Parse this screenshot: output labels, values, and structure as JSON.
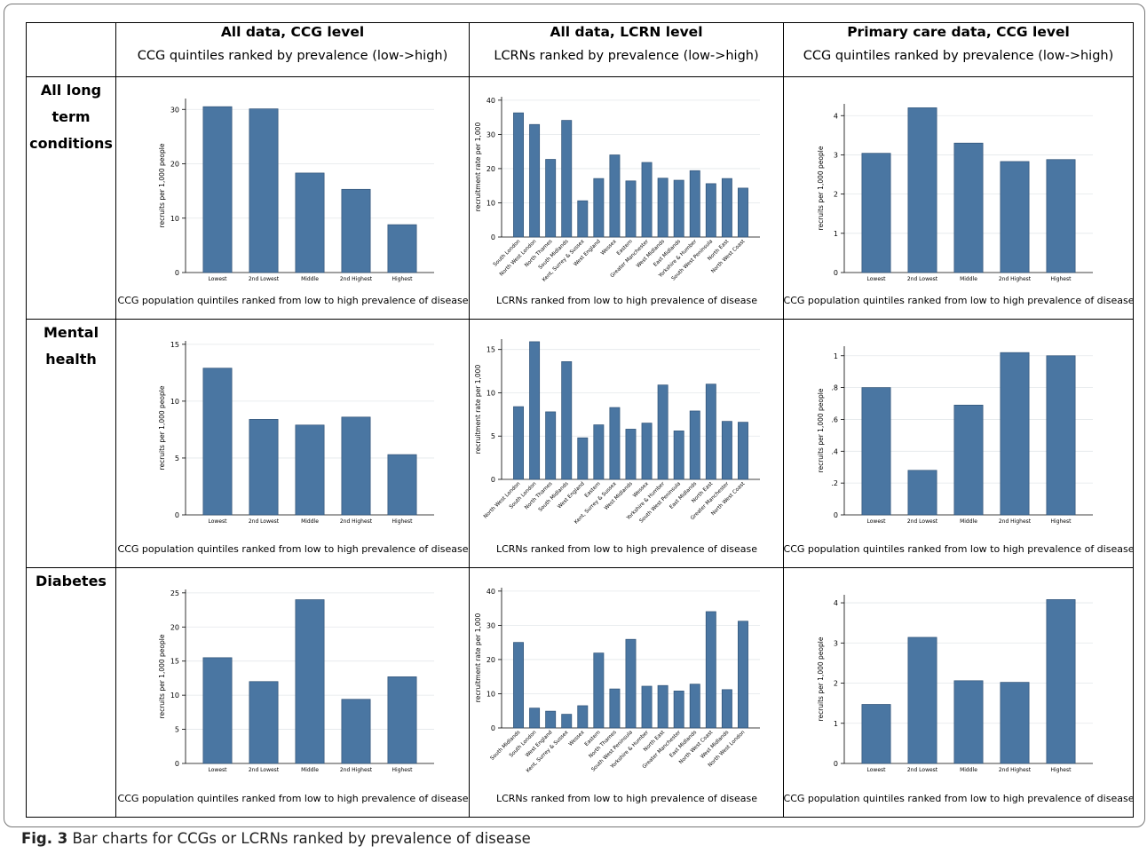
{
  "columns": [
    {
      "title": "All data, CCG level",
      "subtitle": "CCG quintiles ranked by prevalence (low->high)"
    },
    {
      "title": "All data, LCRN level",
      "subtitle": "LCRNs ranked by prevalence (low->high)"
    },
    {
      "title": "Primary care data, CCG level",
      "subtitle": "CCG quintiles ranked by prevalence (low->high)"
    }
  ],
  "rows": [
    {
      "label_lines": [
        "All long",
        "term",
        "conditions"
      ]
    },
    {
      "label_lines": [
        "Mental",
        "health"
      ]
    },
    {
      "label_lines": [
        "Diabetes"
      ]
    }
  ],
  "caption": {
    "fig": "Fig. 3",
    "text": " Bar charts for CCGs or LCRNs ranked by prevalence of disease"
  },
  "colors": {
    "bar": "#4a76a2",
    "bar_edge": "#2f5277",
    "grid": "#e3e7ea"
  },
  "chart_data": [
    {
      "type": "bar",
      "row": 0,
      "col": 0,
      "categories": [
        "Lowest",
        "2nd Lowest",
        "Middle",
        "2nd Highest",
        "Highest"
      ],
      "values": [
        30.5,
        30.1,
        18.3,
        15.3,
        8.8
      ],
      "ylabel": "recruits per 1,000 people",
      "ylim": [
        0,
        32
      ],
      "yticks": [
        0,
        10,
        20,
        30
      ],
      "ytick_labels": [
        "0",
        "10",
        "20",
        "30"
      ],
      "xlabel": "CCG population quintiles ranked from low to high prevalence of disease",
      "rotate_x": false
    },
    {
      "type": "bar",
      "row": 0,
      "col": 1,
      "categories": [
        "South London",
        "North West London",
        "North Thames",
        "South Midlands",
        "Kent, Surrey & Sussex",
        "West England",
        "Wessex",
        "Eastern",
        "Greater Manchester",
        "West Midlands",
        "East Midlands",
        "Yorkshire & Humber",
        "South West Peninsula",
        "North East",
        "North West Coast"
      ],
      "values": [
        36.3,
        32.9,
        22.7,
        34.1,
        10.6,
        17.1,
        24.0,
        16.4,
        21.8,
        17.2,
        16.6,
        19.4,
        15.6,
        17.1,
        14.3
      ],
      "ylabel": "recruitment rate per 1,000",
      "ylim": [
        0,
        41
      ],
      "yticks": [
        0,
        10,
        20,
        30,
        40
      ],
      "ytick_labels": [
        "0",
        "10",
        "20",
        "30",
        "40"
      ],
      "xlabel": "LCRNs ranked from low to high prevalence of disease",
      "rotate_x": true
    },
    {
      "type": "bar",
      "row": 0,
      "col": 2,
      "categories": [
        "Lowest",
        "2nd Lowest",
        "Middle",
        "2nd Highest",
        "Highest"
      ],
      "values": [
        3.04,
        4.2,
        3.3,
        2.83,
        2.88
      ],
      "ylabel": "recruits per 1,000 people",
      "ylim": [
        0,
        4.3
      ],
      "yticks": [
        0,
        1,
        2,
        3,
        4
      ],
      "ytick_labels": [
        "0",
        "1",
        "2",
        "3",
        "4"
      ],
      "xlabel": "CCG population quintiles ranked from low to high prevalence of disease",
      "rotate_x": false
    },
    {
      "type": "bar",
      "row": 1,
      "col": 0,
      "categories": [
        "Lowest",
        "2nd Lowest",
        "Middle",
        "2nd Highest",
        "Highest"
      ],
      "values": [
        12.9,
        8.4,
        7.9,
        8.6,
        5.3
      ],
      "ylabel": "recruits per 1,000 people",
      "ylim": [
        0,
        15.3
      ],
      "yticks": [
        0,
        5,
        10,
        15
      ],
      "ytick_labels": [
        "0",
        "5",
        "10",
        "15"
      ],
      "xlabel": "CCG population quintiles ranked from low to high prevalence of disease",
      "rotate_x": false
    },
    {
      "type": "bar",
      "row": 1,
      "col": 1,
      "categories": [
        "North West London",
        "South London",
        "North Thames",
        "South Midlands",
        "West England",
        "Eastern",
        "Kent, Surrey & Sussex",
        "West Midlands",
        "Wessex",
        "Yorkshire & Humber",
        "South West Peninsula",
        "East Midlands",
        "North East",
        "Greater Manchester",
        "North West Coast"
      ],
      "values": [
        8.4,
        15.9,
        7.8,
        13.6,
        4.8,
        6.3,
        8.3,
        5.8,
        6.5,
        10.9,
        5.6,
        7.9,
        11.0,
        6.7,
        6.6
      ],
      "ylabel": "recruitment rate per 1,000",
      "ylim": [
        0,
        16.2
      ],
      "yticks": [
        0,
        5,
        10,
        15
      ],
      "ytick_labels": [
        "0",
        "5",
        "10",
        "15"
      ],
      "xlabel": "LCRNs ranked from low to high prevalence of disease",
      "rotate_x": true
    },
    {
      "type": "bar",
      "row": 1,
      "col": 2,
      "categories": [
        "Lowest",
        "2nd Lowest",
        "Middle",
        "2nd Highest",
        "Highest"
      ],
      "values": [
        0.8,
        0.28,
        0.69,
        1.02,
        1.0
      ],
      "ylabel": "recruits per 1,000 people",
      "ylim": [
        0,
        1.06
      ],
      "yticks": [
        0,
        0.2,
        0.4,
        0.6,
        0.8,
        1
      ],
      "ytick_labels": [
        "0",
        ".2",
        ".4",
        ".6",
        ".8",
        "1"
      ],
      "xlabel": "CCG population quintiles ranked from low to high prevalence of disease",
      "rotate_x": false
    },
    {
      "type": "bar",
      "row": 2,
      "col": 0,
      "categories": [
        "Lowest",
        "2nd Lowest",
        "Middle",
        "2nd Highest",
        "Highest"
      ],
      "values": [
        15.5,
        12.0,
        24.0,
        9.4,
        12.7
      ],
      "ylabel": "recruits per 1,000 people",
      "ylim": [
        0,
        25.5
      ],
      "yticks": [
        0,
        5,
        10,
        15,
        20,
        25
      ],
      "ytick_labels": [
        "0",
        "5",
        "10",
        "15",
        "20",
        "25"
      ],
      "xlabel": "CCG population quintiles ranked from low to high prevalence of disease",
      "rotate_x": false
    },
    {
      "type": "bar",
      "row": 2,
      "col": 1,
      "categories": [
        "South Midlands",
        "South London",
        "West England",
        "Kent, Surrey & Sussex",
        "Wessex",
        "Eastern",
        "North Thames",
        "South West Peninsula",
        "Yorkshire & Humber",
        "North East",
        "Greater Manchester",
        "East Midlands",
        "North West Coast",
        "West Midlands",
        "North West London"
      ],
      "values": [
        25.0,
        5.8,
        4.9,
        4.0,
        6.5,
        21.9,
        11.4,
        25.9,
        12.2,
        12.4,
        10.8,
        12.8,
        34.0,
        11.2,
        31.2
      ],
      "ylabel": "recruitment rate per 1,000",
      "ylim": [
        0,
        41
      ],
      "yticks": [
        0,
        10,
        20,
        30,
        40
      ],
      "ytick_labels": [
        "0",
        "10",
        "20",
        "30",
        "40"
      ],
      "xlabel": "LCRNs ranked from low to high prevalence of disease",
      "rotate_x": true
    },
    {
      "type": "bar",
      "row": 2,
      "col": 2,
      "categories": [
        "Lowest",
        "2nd Lowest",
        "Middle",
        "2nd Highest",
        "Highest"
      ],
      "values": [
        1.47,
        3.14,
        2.06,
        2.02,
        4.08
      ],
      "ylabel": "recruits per 1,000 people",
      "ylim": [
        0,
        4.2
      ],
      "yticks": [
        0,
        1,
        2,
        3,
        4
      ],
      "ytick_labels": [
        "0",
        "1",
        "2",
        "3",
        "4"
      ],
      "xlabel": "CCG population quintiles ranked from low to high prevalence of disease",
      "rotate_x": false
    }
  ]
}
